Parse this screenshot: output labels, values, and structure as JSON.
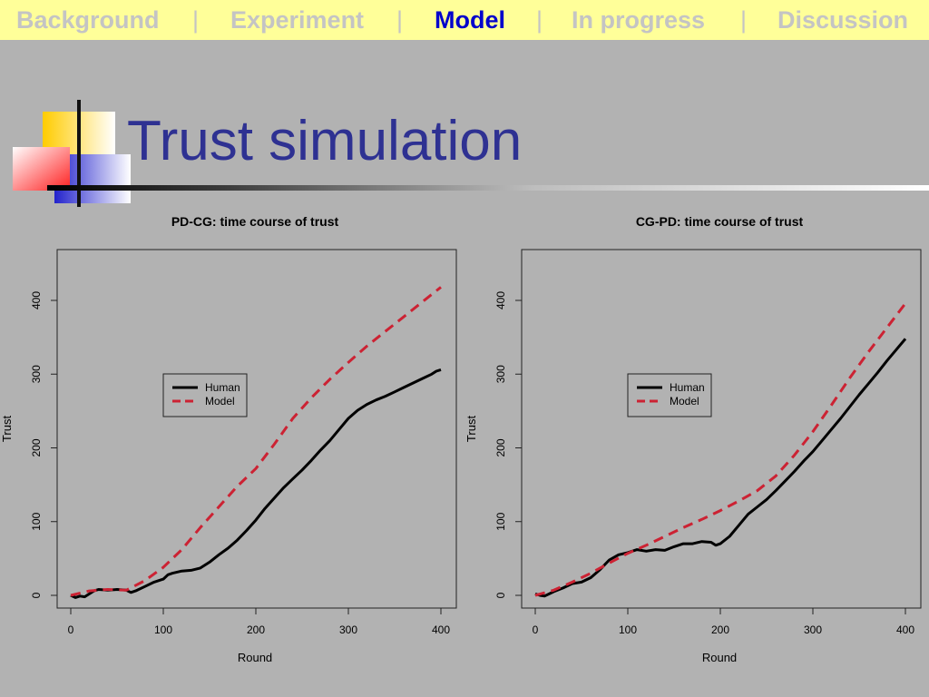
{
  "nav": {
    "items": [
      {
        "label": "Background",
        "active": false
      },
      {
        "label": "Experiment",
        "active": false
      },
      {
        "label": "Model",
        "active": true
      },
      {
        "label": "In progress",
        "active": false
      },
      {
        "label": "Discussion",
        "active": false
      }
    ],
    "separator": "|"
  },
  "slide": {
    "title": "Trust simulation"
  },
  "colors": {
    "nav_bg": "#ffff99",
    "nav_active": "#0000cc",
    "nav_inactive": "#c4c4c4",
    "title": "#2e3192",
    "human": "#000000",
    "model": "#cc2233",
    "slide_bg": "#b2b2b2"
  },
  "chart_data": [
    {
      "type": "line",
      "title": "PD-CG: time course of trust",
      "xlabel": "Round",
      "ylabel": "Trust",
      "xlim": [
        0,
        400
      ],
      "ylim": [
        0,
        400
      ],
      "xticks": [
        "0",
        "100",
        "200",
        "300",
        "400"
      ],
      "yticks": [
        "0",
        "100",
        "200",
        "300",
        "400"
      ],
      "legend": {
        "placement": "center-left",
        "entries": [
          "Human",
          "Model"
        ]
      },
      "series": [
        {
          "name": "Human",
          "style": "solid",
          "x": [
            0,
            5,
            10,
            15,
            20,
            25,
            30,
            40,
            50,
            60,
            65,
            70,
            80,
            90,
            100,
            105,
            110,
            120,
            130,
            140,
            150,
            160,
            170,
            180,
            190,
            200,
            210,
            220,
            230,
            240,
            250,
            260,
            270,
            280,
            290,
            300,
            310,
            320,
            330,
            340,
            350,
            360,
            370,
            380,
            390,
            395,
            400
          ],
          "y": [
            0,
            -3,
            -1,
            -2,
            2,
            6,
            8,
            7,
            8,
            7,
            4,
            6,
            12,
            18,
            22,
            28,
            30,
            33,
            34,
            37,
            45,
            55,
            64,
            75,
            88,
            102,
            118,
            132,
            146,
            158,
            170,
            183,
            197,
            210,
            225,
            240,
            251,
            259,
            265,
            270,
            276,
            282,
            288,
            294,
            300,
            304,
            306
          ]
        },
        {
          "name": "Model",
          "style": "dashed",
          "x": [
            0,
            20,
            40,
            60,
            80,
            100,
            120,
            140,
            160,
            180,
            200,
            220,
            240,
            260,
            280,
            300,
            320,
            340,
            360,
            380,
            400
          ],
          "y": [
            0,
            6,
            8,
            7,
            20,
            38,
            62,
            92,
            120,
            148,
            172,
            205,
            240,
            268,
            293,
            316,
            338,
            358,
            378,
            398,
            418
          ]
        }
      ]
    },
    {
      "type": "line",
      "title": "CG-PD: time course of trust",
      "xlabel": "Round",
      "ylabel": "Trust",
      "xlim": [
        0,
        400
      ],
      "ylim": [
        0,
        400
      ],
      "xticks": [
        "0",
        "100",
        "200",
        "300",
        "400"
      ],
      "yticks": [
        "0",
        "100",
        "200",
        "300",
        "400"
      ],
      "legend": {
        "placement": "center-left",
        "entries": [
          "Human",
          "Model"
        ]
      },
      "series": [
        {
          "name": "Human",
          "style": "solid",
          "x": [
            0,
            5,
            10,
            15,
            20,
            30,
            40,
            50,
            60,
            70,
            80,
            90,
            100,
            110,
            120,
            130,
            140,
            150,
            160,
            170,
            180,
            190,
            195,
            200,
            210,
            220,
            230,
            240,
            250,
            260,
            270,
            280,
            290,
            300,
            310,
            320,
            330,
            340,
            350,
            360,
            370,
            380,
            390,
            400
          ],
          "y": [
            2,
            0,
            -1,
            2,
            5,
            10,
            16,
            18,
            24,
            35,
            48,
            55,
            58,
            62,
            60,
            62,
            61,
            66,
            70,
            70,
            73,
            72,
            68,
            70,
            80,
            95,
            110,
            120,
            130,
            142,
            155,
            168,
            182,
            195,
            210,
            225,
            240,
            256,
            272,
            287,
            302,
            318,
            333,
            348
          ]
        },
        {
          "name": "Model",
          "style": "dashed",
          "x": [
            0,
            20,
            40,
            60,
            80,
            100,
            120,
            140,
            160,
            180,
            200,
            220,
            240,
            260,
            280,
            300,
            320,
            340,
            360,
            380,
            400
          ],
          "y": [
            0,
            7,
            18,
            30,
            44,
            57,
            68,
            80,
            92,
            103,
            115,
            128,
            142,
            162,
            190,
            222,
            258,
            295,
            330,
            363,
            396
          ]
        }
      ]
    }
  ]
}
